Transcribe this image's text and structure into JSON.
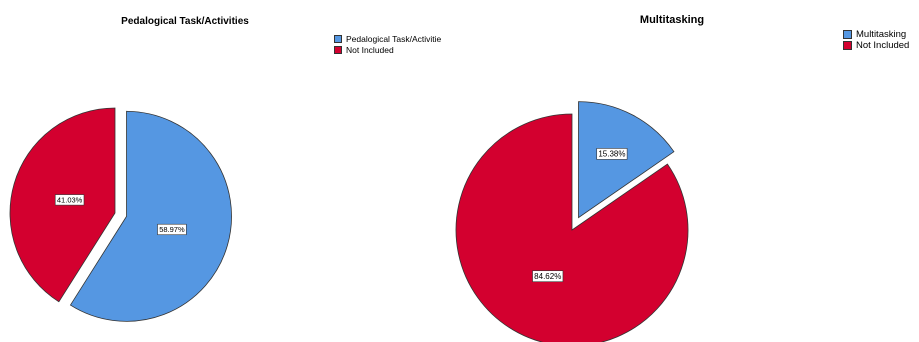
{
  "chart_data": [
    {
      "type": "pie",
      "title": "Pedalogical Task/Activities",
      "legend_position": "top-right",
      "series": [
        {
          "name": "Pedalogical Task/Activitie",
          "value": 58.97,
          "label": "58.97%",
          "color": "#5597e2",
          "exploded": true
        },
        {
          "name": "Not Included",
          "value": 41.03,
          "label": "41.03%",
          "color": "#d3002f",
          "exploded": false
        }
      ]
    },
    {
      "type": "pie",
      "title": "Multitasking",
      "legend_position": "top-right",
      "series": [
        {
          "name": "Multitasking",
          "value": 15.38,
          "label": "15.38%",
          "color": "#5597e2",
          "exploded": true
        },
        {
          "name": "Not Included",
          "value": 84.62,
          "label": "84.62%",
          "color": "#d3002f",
          "exploded": false
        }
      ]
    }
  ]
}
